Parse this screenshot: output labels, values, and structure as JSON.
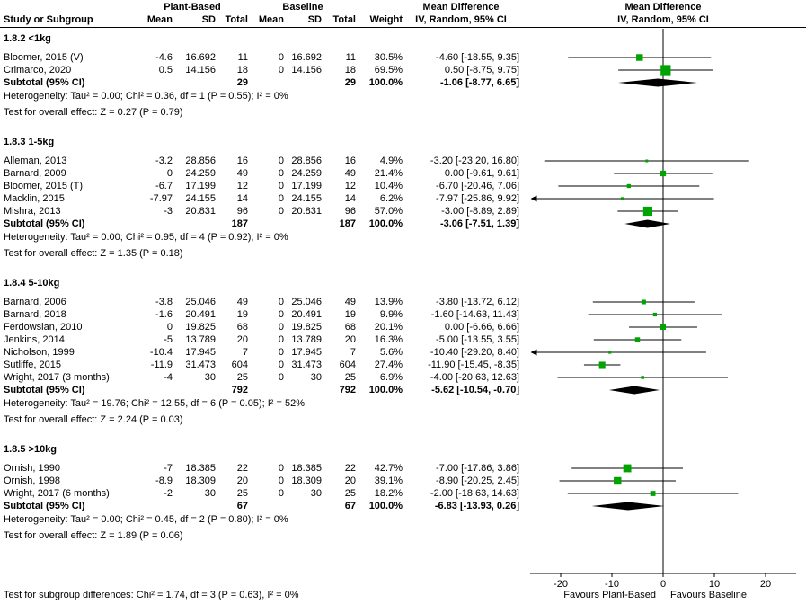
{
  "colors": {
    "marker": "#00a400",
    "line": "#000000",
    "diamond": "#000000"
  },
  "header": {
    "study": "Study or Subgroup",
    "group_plant": "Plant-Based",
    "group_baseline": "Baseline",
    "md_text": "Mean Difference",
    "md_plot": "Mean Difference",
    "mean1": "Mean",
    "sd1": "SD",
    "total1": "Total",
    "mean2": "Mean",
    "sd2": "SD",
    "total2": "Total",
    "weight": "Weight",
    "iv_text": "IV, Random, 95% CI",
    "iv_plot": "IV, Random, 95% CI"
  },
  "footer": {
    "subgroup_test": "Test for subgroup differences: Chi² = 1.74, df = 3 (P = 0.63), I² = 0%"
  },
  "chart_data": {
    "type": "forest",
    "effect_measure": "Mean Difference, IV, Random, 95% CI",
    "axis": {
      "min": -25,
      "max": 25,
      "ticks": [
        -20,
        -10,
        0,
        10,
        20
      ],
      "favours_left": "Favours Plant-Based",
      "favours_right": "Favours Baseline"
    },
    "subgroups": [
      {
        "label": "1.8.2 <1kg",
        "studies": [
          {
            "name": "Bloomer, 2015 (V)",
            "mean1": "-4.6",
            "sd1": "16.692",
            "n1": "11",
            "mean2": "0",
            "sd2": "16.692",
            "n2": "11",
            "weight": 30.5,
            "md": -4.6,
            "lo": -18.55,
            "hi": 9.35
          },
          {
            "name": "Crimarco, 2020",
            "mean1": "0.5",
            "sd1": "14.156",
            "n1": "18",
            "mean2": "0",
            "sd2": "14.156",
            "n2": "18",
            "weight": 69.5,
            "md": 0.5,
            "lo": -8.75,
            "hi": 9.75
          }
        ],
        "subtotal": {
          "label": "Subtotal (95% CI)",
          "n1": "29",
          "n2": "29",
          "weight": 100.0,
          "md": -1.06,
          "lo": -8.77,
          "hi": 6.65
        },
        "heterogeneity": "Heterogeneity: Tau² = 0.00; Chi² = 0.36, df = 1 (P = 0.55); I² = 0%",
        "overall": "Test for overall effect: Z = 0.27 (P = 0.79)"
      },
      {
        "label": "1.8.3 1-5kg",
        "studies": [
          {
            "name": "Alleman, 2013",
            "mean1": "-3.2",
            "sd1": "28.856",
            "n1": "16",
            "mean2": "0",
            "sd2": "28.856",
            "n2": "16",
            "weight": 4.9,
            "md": -3.2,
            "lo": -23.2,
            "hi": 16.8
          },
          {
            "name": "Barnard, 2009",
            "mean1": "0",
            "sd1": "24.259",
            "n1": "49",
            "mean2": "0",
            "sd2": "24.259",
            "n2": "49",
            "weight": 21.4,
            "md": 0,
            "lo": -9.61,
            "hi": 9.61
          },
          {
            "name": "Bloomer, 2015 (T)",
            "mean1": "-6.7",
            "sd1": "17.199",
            "n1": "12",
            "mean2": "0",
            "sd2": "17.199",
            "n2": "12",
            "weight": 10.4,
            "md": -6.7,
            "lo": -20.46,
            "hi": 7.06
          },
          {
            "name": "Macklin, 2015",
            "mean1": "-7.97",
            "sd1": "24.155",
            "n1": "14",
            "mean2": "0",
            "sd2": "24.155",
            "n2": "14",
            "weight": 6.2,
            "md": -7.97,
            "lo": -25.86,
            "hi": 9.92
          },
          {
            "name": "Mishra, 2013",
            "mean1": "-3",
            "sd1": "20.831",
            "n1": "96",
            "mean2": "0",
            "sd2": "20.831",
            "n2": "96",
            "weight": 57.0,
            "md": -3,
            "lo": -8.89,
            "hi": 2.89
          }
        ],
        "subtotal": {
          "label": "Subtotal (95% CI)",
          "n1": "187",
          "n2": "187",
          "weight": 100.0,
          "md": -3.06,
          "lo": -7.51,
          "hi": 1.39
        },
        "heterogeneity": "Heterogeneity: Tau² = 0.00; Chi² = 0.95, df = 4 (P = 0.92); I² = 0%",
        "overall": "Test for overall effect: Z = 1.35 (P = 0.18)"
      },
      {
        "label": "1.8.4 5-10kg",
        "studies": [
          {
            "name": "Barnard, 2006",
            "mean1": "-3.8",
            "sd1": "25.046",
            "n1": "49",
            "mean2": "0",
            "sd2": "25.046",
            "n2": "49",
            "weight": 13.9,
            "md": -3.8,
            "lo": -13.72,
            "hi": 6.12
          },
          {
            "name": "Barnard, 2018",
            "mean1": "-1.6",
            "sd1": "20.491",
            "n1": "19",
            "mean2": "0",
            "sd2": "20.491",
            "n2": "19",
            "weight": 9.9,
            "md": -1.6,
            "lo": -14.63,
            "hi": 11.43
          },
          {
            "name": "Ferdowsian, 2010",
            "mean1": "0",
            "sd1": "19.825",
            "n1": "68",
            "mean2": "0",
            "sd2": "19.825",
            "n2": "68",
            "weight": 20.1,
            "md": 0,
            "lo": -6.66,
            "hi": 6.66
          },
          {
            "name": "Jenkins, 2014",
            "mean1": "-5",
            "sd1": "13.789",
            "n1": "20",
            "mean2": "0",
            "sd2": "13.789",
            "n2": "20",
            "weight": 16.3,
            "md": -5,
            "lo": -13.55,
            "hi": 3.55
          },
          {
            "name": "Nicholson, 1999",
            "mean1": "-10.4",
            "sd1": "17.945",
            "n1": "7",
            "mean2": "0",
            "sd2": "17.945",
            "n2": "7",
            "weight": 5.6,
            "md": -10.4,
            "lo": -29.2,
            "hi": 8.4
          },
          {
            "name": "Sutliffe, 2015",
            "mean1": "-11.9",
            "sd1": "31.473",
            "n1": "604",
            "mean2": "0",
            "sd2": "31.473",
            "n2": "604",
            "weight": 27.4,
            "md": -11.9,
            "lo": -15.45,
            "hi": -8.35
          },
          {
            "name": "Wright, 2017 (3 months)",
            "mean1": "-4",
            "sd1": "30",
            "n1": "25",
            "mean2": "0",
            "sd2": "30",
            "n2": "25",
            "weight": 6.9,
            "md": -4,
            "lo": -20.63,
            "hi": 12.63
          }
        ],
        "subtotal": {
          "label": "Subtotal (95% CI)",
          "n1": "792",
          "n2": "792",
          "weight": 100.0,
          "md": -5.62,
          "lo": -10.54,
          "hi": -0.7
        },
        "heterogeneity": "Heterogeneity: Tau² = 19.76; Chi² = 12.55, df = 6 (P = 0.05); I² = 52%",
        "overall": "Test for overall effect: Z = 2.24 (P = 0.03)"
      },
      {
        "label": "1.8.5 >10kg",
        "studies": [
          {
            "name": "Ornish, 1990",
            "mean1": "-7",
            "sd1": "18.385",
            "n1": "22",
            "mean2": "0",
            "sd2": "18.385",
            "n2": "22",
            "weight": 42.7,
            "md": -7,
            "lo": -17.86,
            "hi": 3.86
          },
          {
            "name": "Ornish, 1998",
            "mean1": "-8.9",
            "sd1": "18.309",
            "n1": "20",
            "mean2": "0",
            "sd2": "18.309",
            "n2": "20",
            "weight": 39.1,
            "md": -8.9,
            "lo": -20.25,
            "hi": 2.45
          },
          {
            "name": "Wright, 2017 (6 months)",
            "mean1": "-2",
            "sd1": "30",
            "n1": "25",
            "mean2": "0",
            "sd2": "30",
            "n2": "25",
            "weight": 18.2,
            "md": -2,
            "lo": -18.63,
            "hi": 14.63
          }
        ],
        "subtotal": {
          "label": "Subtotal (95% CI)",
          "n1": "67",
          "n2": "67",
          "weight": 100.0,
          "md": -6.83,
          "lo": -13.93,
          "hi": 0.26
        },
        "heterogeneity": "Heterogeneity: Tau² = 0.00; Chi² = 0.45, df = 2 (P = 0.80); I² = 0%",
        "overall": "Test for overall effect: Z = 1.89 (P = 0.06)"
      }
    ]
  }
}
